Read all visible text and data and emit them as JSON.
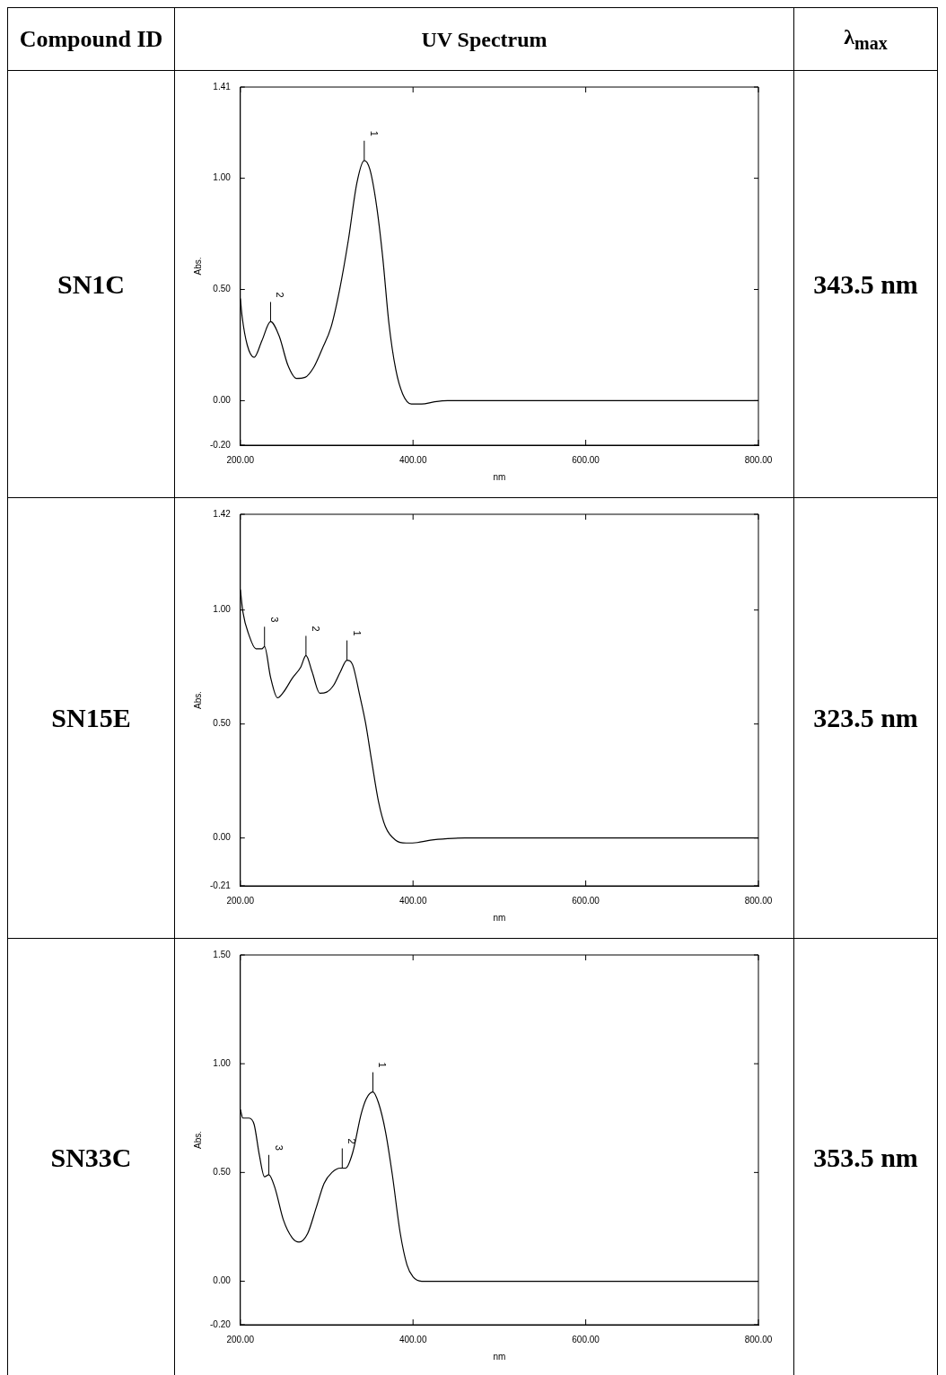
{
  "chart_data": [
    {
      "type": "line",
      "xlabel": "nm",
      "ylabel": "Abs.",
      "color": "#000000",
      "marker": "none",
      "x": [
        200,
        202,
        208,
        216,
        225,
        235,
        245,
        255,
        265,
        275,
        285,
        295,
        305,
        315,
        325,
        335,
        343.5,
        350,
        358,
        365,
        372,
        380,
        388,
        398,
        410,
        425,
        440,
        800
      ],
      "values": [
        0.46,
        0.38,
        0.25,
        0.195,
        0.27,
        0.355,
        0.29,
        0.16,
        0.1,
        0.105,
        0.15,
        0.235,
        0.33,
        0.5,
        0.72,
        0.98,
        1.08,
        1.04,
        0.87,
        0.64,
        0.35,
        0.14,
        0.03,
        -0.015,
        -0.015,
        -0.005,
        0,
        0
      ],
      "xlim": [
        200,
        800
      ],
      "xticks": [
        {
          "value": 200,
          "label": "200.00"
        },
        {
          "value": 400,
          "label": "400.00"
        },
        {
          "value": 600,
          "label": "600.00"
        },
        {
          "value": 800,
          "label": "800.00"
        }
      ],
      "ylim": [
        -0.2,
        1.41
      ],
      "yticks": [
        {
          "value": -0.2,
          "label": "-0.20"
        },
        {
          "value": 0,
          "label": "0.00"
        },
        {
          "value": 0.5,
          "label": "0.50"
        },
        {
          "value": 1,
          "label": "1.00"
        },
        1.41
      ],
      "annotations": [
        "Compound ID",
        "UV Spectrum",
        "λ$_{max}$",
        "SN1C",
        "343.5 nm",
        {
          "text": "1",
          "x": 343.5,
          "y": 1.08
        },
        {
          "text": "2",
          "x": 235,
          "y": 0.355
        }
      ]
    },
    {
      "type": "line",
      "xlabel": "nm",
      "ylabel": "Abs.",
      "color": "#000000",
      "marker": "none",
      "x": [
        200,
        203,
        210,
        218,
        225,
        228,
        235,
        243,
        250,
        260,
        270,
        276,
        283,
        292,
        300,
        308,
        316,
        323.5,
        330,
        338,
        345,
        352,
        360,
        368,
        380,
        392,
        405,
        420,
        440,
        460,
        800
      ],
      "values": [
        1.09,
        0.99,
        0.89,
        0.83,
        0.83,
        0.84,
        0.705,
        0.615,
        0.64,
        0.7,
        0.75,
        0.8,
        0.73,
        0.635,
        0.64,
        0.67,
        0.73,
        0.78,
        0.76,
        0.63,
        0.505,
        0.34,
        0.16,
        0.05,
        -0.01,
        -0.022,
        -0.02,
        -0.01,
        -0.003,
        0,
        0
      ],
      "xlim": [
        200,
        800
      ],
      "xticks": [
        {
          "value": 200,
          "label": "200.00"
        },
        {
          "value": 400,
          "label": "400.00"
        },
        {
          "value": 600,
          "label": "600.00"
        },
        {
          "value": 800,
          "label": "800.00"
        }
      ],
      "ylim": [
        -0.21,
        1.42
      ],
      "yticks": [
        {
          "value": -0.21,
          "label": "-0.21"
        },
        {
          "value": 0,
          "label": "0.00"
        },
        {
          "value": 0.5,
          "label": "0.50"
        },
        {
          "value": 1,
          "label": "1.00"
        },
        1.42
      ],
      "annotations": [
        "SN15E",
        "323.5 nm",
        {
          "text": "1",
          "x": 323.5,
          "y": 0.78
        },
        {
          "text": "2",
          "x": 276,
          "y": 0.8
        },
        {
          "text": "3",
          "x": 228,
          "y": 0.84
        }
      ]
    },
    {
      "type": "line",
      "xlabel": "nm",
      "ylabel": "Abs.",
      "color": "#000000",
      "marker": "none",
      "x": [
        200,
        203,
        210,
        216,
        222,
        228,
        233,
        240,
        250,
        260,
        268,
        278,
        288,
        297,
        306,
        316,
        322,
        330,
        340,
        346,
        353.5,
        360,
        368,
        376,
        385,
        393,
        400,
        410,
        800
      ],
      "values": [
        0.79,
        0.75,
        0.75,
        0.72,
        0.58,
        0.48,
        0.49,
        0.43,
        0.28,
        0.2,
        0.18,
        0.22,
        0.34,
        0.45,
        0.5,
        0.52,
        0.52,
        0.59,
        0.77,
        0.84,
        0.87,
        0.82,
        0.69,
        0.49,
        0.225,
        0.075,
        0.02,
        0,
        0
      ],
      "xlim": [
        200,
        800
      ],
      "xticks": [
        {
          "value": 200,
          "label": "200.00"
        },
        {
          "value": 400,
          "label": "400.00"
        },
        {
          "value": 600,
          "label": "600.00"
        },
        {
          "value": 800,
          "label": "800.00"
        }
      ],
      "ylim": [
        -0.2,
        1.5
      ],
      "yticks": [
        {
          "value": -0.2,
          "label": "-0.20"
        },
        {
          "value": 0,
          "label": "0.00"
        },
        {
          "value": 0.5,
          "label": "0.50"
        },
        {
          "value": 1,
          "label": "1.00"
        },
        {
          "value": 1.5,
          "label": "1.50"
        }
      ],
      "annotations": [
        "SN33C",
        "353.5 nm",
        {
          "text": "1",
          "x": 353.5,
          "y": 0.87
        },
        {
          "text": "2",
          "x": 318,
          "y": 0.52
        },
        {
          "text": "3",
          "x": 233,
          "y": 0.49
        }
      ]
    }
  ]
}
